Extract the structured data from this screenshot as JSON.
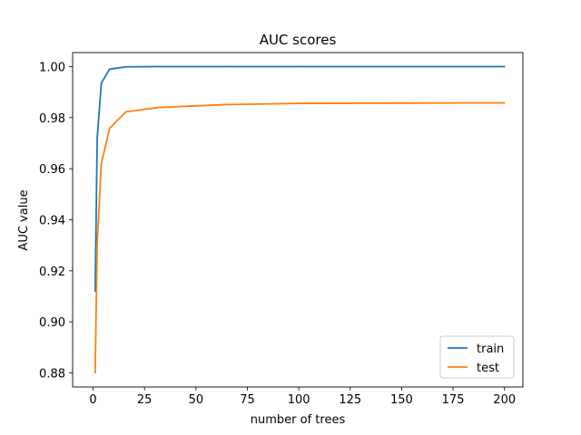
{
  "chart_data": {
    "type": "line",
    "title": "AUC scores",
    "xlabel": "number of trees",
    "ylabel": "AUC value",
    "xlim": [
      -9.95,
      208.95
    ],
    "ylim": [
      0.8745,
      1.0055
    ],
    "xticks": [
      0,
      25,
      50,
      75,
      100,
      125,
      150,
      175,
      200
    ],
    "yticks": [
      0.88,
      0.9,
      0.92,
      0.94,
      0.96,
      0.98,
      1.0
    ],
    "ytick_labels": [
      "0.88",
      "0.90",
      "0.92",
      "0.94",
      "0.96",
      "0.98",
      "1.00"
    ],
    "grid": false,
    "legend_position": "lower-right",
    "series": [
      {
        "name": "train",
        "color": "#1f77b4",
        "x": [
          1,
          2,
          4,
          8,
          16,
          32,
          64,
          100,
          200
        ],
        "y": [
          0.912,
          0.972,
          0.9935,
          0.999,
          0.9999,
          1.0,
          1.0,
          1.0,
          1.0
        ]
      },
      {
        "name": "test",
        "color": "#ff7f0e",
        "x": [
          1,
          2,
          4,
          8,
          16,
          32,
          64,
          100,
          200
        ],
        "y": [
          0.88,
          0.931,
          0.962,
          0.9758,
          0.9823,
          0.984,
          0.9851,
          0.9856,
          0.9858
        ]
      }
    ]
  }
}
